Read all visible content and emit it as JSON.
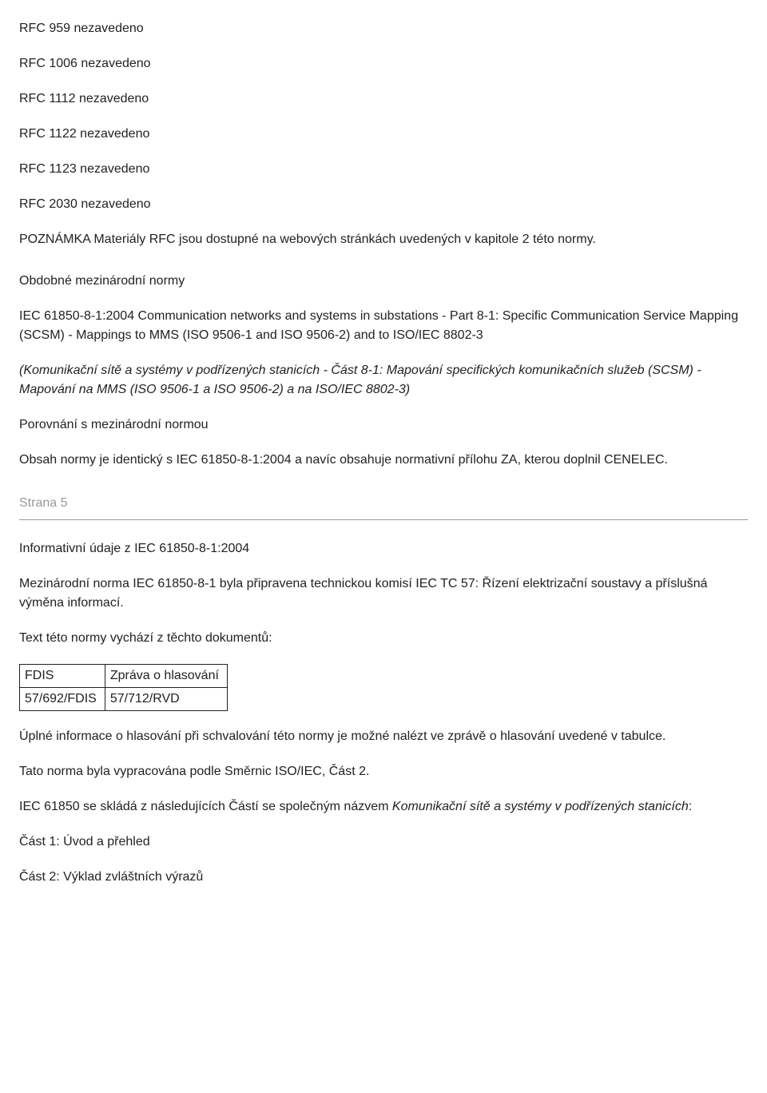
{
  "rfc_list": [
    "RFC 959 nezavedeno",
    "RFC 1006 nezavedeno",
    "RFC 1112 nezavedeno",
    "RFC 1122 nezavedeno",
    "RFC 1123 nezavedeno",
    "RFC 2030 nezavedeno"
  ],
  "note": "POZNÁMKA Materiály RFC jsou dostupné na webových stránkách uvedených v kapitole 2 této normy.",
  "intl_heading": "Obdobné mezinárodní normy",
  "intl_body": "IEC 61850-8-1:2004 Communication networks and systems in substations - Part 8-1: Specific Communication Service Mapping (SCSM) - Mappings to MMS (ISO 9506-1 and ISO 9506-2) and to ISO/IEC 8802-3",
  "intl_translation": "(Komunikační sítě a systémy v podřízených stanicích - Část 8-1: Mapování specifických komunikačních služeb (SCSM) - Mapování na MMS (ISO 9506-1 a ISO 9506-2) a na ISO/IEC 8802-3)",
  "compare_heading": "Porovnání s mezinárodní normou",
  "compare_body": "Obsah normy je identický s IEC 61850-8-1:2004 a navíc obsahuje normativní přílohu ZA, kterou doplnil CENELEC.",
  "page_label": "Strana 5",
  "info_heading": "Informativní údaje z IEC 61850-8-1:2004",
  "info_p1": "Mezinárodní norma IEC 61850-8-1 byla připravena technickou komisí IEC TC 57: Řízení elektrizační soustavy a příslušná výměna informací.",
  "info_p2": "Text této normy vychází z těchto dokumentů:",
  "doc_table": {
    "r1c1": "FDIS",
    "r1c2": "Zpráva o hlasování",
    "r2c1": "57/692/FDIS",
    "r2c2": "57/712/RVD"
  },
  "info_p3": "Úplné informace o hlasování při schvalování této normy je možné nalézt ve zprávě o hlasování uvedené v tabulce.",
  "info_p4": "Tato norma byla vypracována podle Směrnic ISO/IEC, Část 2.",
  "info_p5_pre": "IEC 61850 se skládá z následujících Částí se společným názvem ",
  "info_p5_italic": "Komunikační sítě a systémy v podřízených stanicích",
  "info_p5_post": ":",
  "part1": "Část 1: Úvod a přehled",
  "part2": "Část 2: Výklad zvláštních výrazů"
}
